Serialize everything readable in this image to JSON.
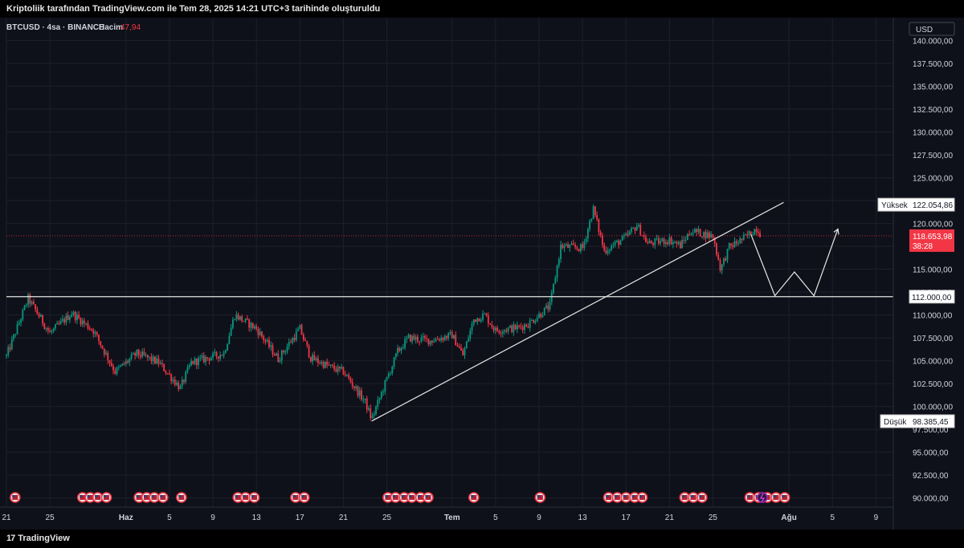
{
  "header": {
    "text": "Kriptoliik tarafından TradingView.com ile Tem 28, 2025 14:21 UTC+3 tarihinde oluşturuldu"
  },
  "legend": {
    "symbol": "BTCUSD · 4sa · BINANCE",
    "volume_label": "Hacim",
    "volume_value": "47,94"
  },
  "currency": "USD",
  "markers": {
    "high_label": "Yüksek",
    "high_value": "122.054,86",
    "low_label": "Düşük",
    "low_value": "98.385,45",
    "last_price": "118.653,98",
    "countdown": "38:28",
    "support_value": "112.000,00"
  },
  "footer": {
    "brand": "TradingView",
    "logo_glyph": "17"
  },
  "colors": {
    "up": "#089981",
    "down": "#f23645",
    "background": "#0f111a",
    "grid": "#1c1f2b",
    "text": "#d1d4dc",
    "last_price_bg": "#f23645"
  },
  "chart_data": {
    "type": "candlestick",
    "ylim": [
      89000,
      142500
    ],
    "y_ticks": [
      {
        "v": 140000,
        "label": "140.000,00"
      },
      {
        "v": 137500,
        "label": "137.500,00"
      },
      {
        "v": 135000,
        "label": "135.000,00"
      },
      {
        "v": 132500,
        "label": "132.500,00"
      },
      {
        "v": 130000,
        "label": "130.000,00"
      },
      {
        "v": 127500,
        "label": "127.500,00"
      },
      {
        "v": 125000,
        "label": "125.000,00"
      },
      {
        "v": 122500,
        "label": "122.500,00"
      },
      {
        "v": 120000,
        "label": "120.000,00"
      },
      {
        "v": 117500,
        "label": "117.500,00"
      },
      {
        "v": 115000,
        "label": "115.000,00"
      },
      {
        "v": 112500,
        "label": "112.500,00"
      },
      {
        "v": 110000,
        "label": "110.000,00"
      },
      {
        "v": 107500,
        "label": "107.500,00"
      },
      {
        "v": 105000,
        "label": "105.000,00"
      },
      {
        "v": 102500,
        "label": "102.500,00"
      },
      {
        "v": 100000,
        "label": "100.000,00"
      },
      {
        "v": 97500,
        "label": "97.500,00"
      },
      {
        "v": 95000,
        "label": "95.000,00"
      },
      {
        "v": 92500,
        "label": "92.500,00"
      },
      {
        "v": 90000,
        "label": "90.000,00"
      }
    ],
    "x_start_day": 21,
    "x_end_day": 104,
    "x_ticks": [
      {
        "day": 21,
        "label": "21"
      },
      {
        "day": 25,
        "label": "25"
      },
      {
        "day": 32,
        "label": "Haz"
      },
      {
        "day": 36,
        "label": "5"
      },
      {
        "day": 40,
        "label": "9"
      },
      {
        "day": 44,
        "label": "13"
      },
      {
        "day": 48,
        "label": "17"
      },
      {
        "day": 52,
        "label": "21"
      },
      {
        "day": 56,
        "label": "25"
      },
      {
        "day": 62,
        "label": "Tem"
      },
      {
        "day": 66,
        "label": "5"
      },
      {
        "day": 70,
        "label": "9"
      },
      {
        "day": 74,
        "label": "13"
      },
      {
        "day": 78,
        "label": "17"
      },
      {
        "day": 82,
        "label": "21"
      },
      {
        "day": 86,
        "label": "25"
      },
      {
        "day": 93,
        "label": "Ağu"
      },
      {
        "day": 97,
        "label": "5"
      },
      {
        "day": 101,
        "label": "9"
      }
    ],
    "keypoints": [
      {
        "day": 21,
        "price": 105500
      },
      {
        "day": 23,
        "price": 111800
      },
      {
        "day": 25,
        "price": 108000
      },
      {
        "day": 27,
        "price": 110200
      },
      {
        "day": 29,
        "price": 108300
      },
      {
        "day": 31,
        "price": 103800
      },
      {
        "day": 33,
        "price": 105800
      },
      {
        "day": 35,
        "price": 104800
      },
      {
        "day": 37,
        "price": 102000
      },
      {
        "day": 38,
        "price": 104800
      },
      {
        "day": 41,
        "price": 105800
      },
      {
        "day": 42,
        "price": 110000
      },
      {
        "day": 44,
        "price": 108500
      },
      {
        "day": 46,
        "price": 105200
      },
      {
        "day": 48,
        "price": 108500
      },
      {
        "day": 49,
        "price": 105300
      },
      {
        "day": 51,
        "price": 104200
      },
      {
        "day": 52,
        "price": 103800
      },
      {
        "day": 54,
        "price": 100500
      },
      {
        "day": 54.6,
        "price": 98600
      },
      {
        "day": 56,
        "price": 103000
      },
      {
        "day": 57,
        "price": 106000
      },
      {
        "day": 58,
        "price": 107500
      },
      {
        "day": 60,
        "price": 107200
      },
      {
        "day": 62,
        "price": 107800
      },
      {
        "day": 63,
        "price": 105600
      },
      {
        "day": 64,
        "price": 109500
      },
      {
        "day": 65,
        "price": 110000
      },
      {
        "day": 66,
        "price": 108300
      },
      {
        "day": 68,
        "price": 108600
      },
      {
        "day": 69,
        "price": 109000
      },
      {
        "day": 70,
        "price": 110000
      },
      {
        "day": 71,
        "price": 111000
      },
      {
        "day": 72,
        "price": 117500
      },
      {
        "day": 74,
        "price": 117300
      },
      {
        "day": 75,
        "price": 121600
      },
      {
        "day": 76,
        "price": 117000
      },
      {
        "day": 78,
        "price": 118500
      },
      {
        "day": 79,
        "price": 119800
      },
      {
        "day": 80,
        "price": 117800
      },
      {
        "day": 82,
        "price": 118200
      },
      {
        "day": 83,
        "price": 117600
      },
      {
        "day": 84,
        "price": 119200
      },
      {
        "day": 86,
        "price": 118600
      },
      {
        "day": 86.7,
        "price": 115000
      },
      {
        "day": 87.5,
        "price": 117400
      },
      {
        "day": 89,
        "price": 118500
      },
      {
        "day": 90,
        "price": 119500
      },
      {
        "day": 90.5,
        "price": 118650
      }
    ],
    "trendline": [
      {
        "day": 54.6,
        "price": 98400
      },
      {
        "day": 92.5,
        "price": 122300
      }
    ],
    "support_level": 112000,
    "last_price_level": 118653.98,
    "projection": [
      {
        "day": 89.5,
        "price": 118800
      },
      {
        "day": 91.7,
        "price": 112100
      },
      {
        "day": 93.5,
        "price": 114700
      },
      {
        "day": 95.3,
        "price": 112100
      },
      {
        "day": 97.5,
        "price": 119400
      }
    ],
    "event_days": [
      21.8,
      28,
      28.7,
      29.4,
      30.2,
      33.2,
      33.9,
      34.6,
      35.4,
      37.1,
      42.3,
      43,
      43.8,
      47.6,
      48.4,
      56.1,
      56.8,
      57.6,
      58.3,
      59.1,
      59.8,
      64,
      70.1,
      76.4,
      77.2,
      78,
      78.8,
      79.5,
      83.4,
      84.2,
      85,
      89.4,
      90.2,
      91,
      91.8,
      92.6
    ]
  }
}
